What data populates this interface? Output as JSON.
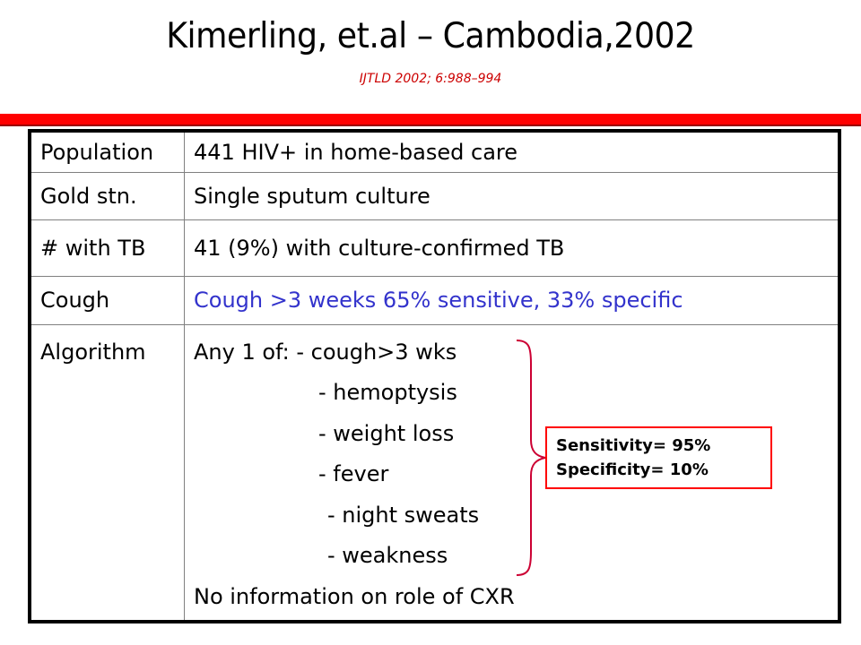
{
  "slide": {
    "title": "Kimerling, et.al – Cambodia,2002",
    "citation": "IJTLD  2002; 6:988–994",
    "accent_color": "#ff0000"
  },
  "table": {
    "rows": [
      {
        "label": "Population",
        "value": "441 HIV+ in home-based care"
      },
      {
        "label": "Gold stn.",
        "value": "Single sputum culture"
      },
      {
        "label": "# with TB",
        "value": "41 (9%) with culture-confirmed TB"
      },
      {
        "label": "Cough",
        "value": "Cough >3 weeks 65% sensitive, 33% specific",
        "value_color": "#3333cc"
      }
    ],
    "algorithm": {
      "label": "Algorithm",
      "intro": "Any 1 of: - cough>3 wks",
      "items": [
        "- hemoptysis",
        "- weight loss",
        "- fever",
        "- night sweats",
        "- weakness"
      ],
      "footer": "No information on role of CXR"
    }
  },
  "callout": {
    "sensitivity": "Sensitivity= 95%",
    "specificity": "Specificity= 10%",
    "brace_icon": "curly-brace-icon"
  }
}
